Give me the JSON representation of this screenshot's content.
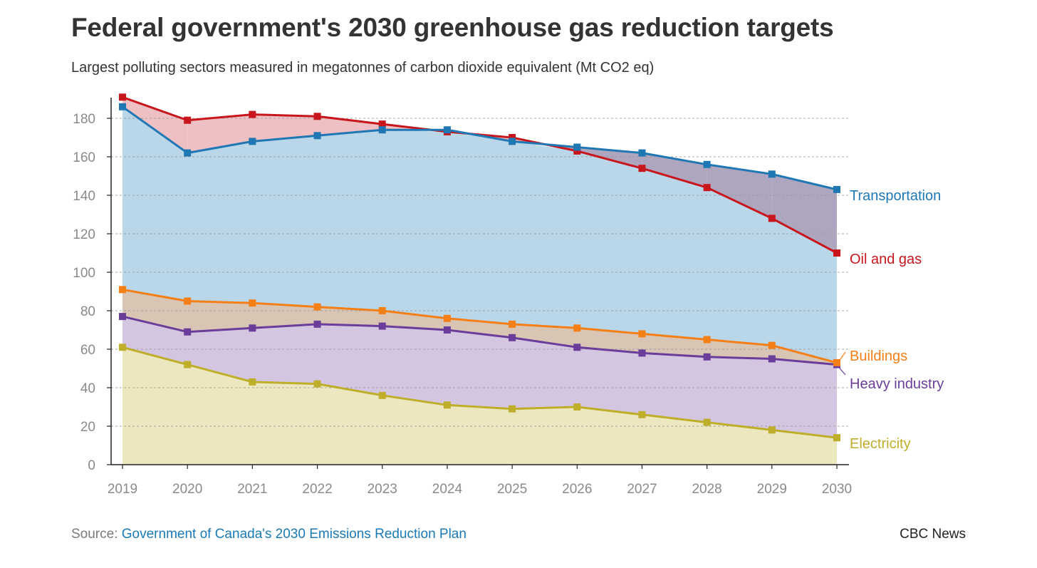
{
  "header": {
    "title": "Federal government's 2030 greenhouse gas reduction targets",
    "subtitle": "Largest polluting sectors measured in megatonnes of carbon dioxide equivalent (Mt CO2 eq)"
  },
  "footer": {
    "source_prefix": "Source: ",
    "source_link": "Government of Canada's 2030 Emissions Reduction Plan",
    "credit": "CBC News"
  },
  "chart_data": {
    "type": "area",
    "title": "Federal government's 2030 greenhouse gas reduction targets",
    "subtitle": "Largest polluting sectors measured in megatonnes of carbon dioxide equivalent (Mt CO2 eq)",
    "xlabel": "",
    "ylabel": "",
    "x": [
      2019,
      2020,
      2021,
      2022,
      2023,
      2024,
      2025,
      2026,
      2027,
      2028,
      2029,
      2030
    ],
    "ylim": [
      0,
      190
    ],
    "yticks": [
      0,
      20,
      40,
      60,
      80,
      100,
      120,
      140,
      160,
      180
    ],
    "grid": true,
    "legend": "direct labels at right end of lines",
    "series": [
      {
        "name": "Transportation",
        "color": "#1f77b4",
        "fill": "#bad6e9",
        "values": [
          186,
          162,
          168,
          171,
          174,
          174,
          168,
          165,
          162,
          156,
          151,
          143
        ]
      },
      {
        "name": "Oil and gas",
        "color": "#c8161d",
        "fill": "#eebfc3",
        "values": [
          191,
          179,
          182,
          181,
          177,
          173,
          170,
          163,
          154,
          144,
          128,
          110
        ]
      },
      {
        "name": "Buildings",
        "color": "#f57f17",
        "fill": "#d9c5b3",
        "values": [
          91,
          85,
          84,
          82,
          80,
          76,
          73,
          71,
          68,
          65,
          62,
          53
        ]
      },
      {
        "name": "Heavy industry",
        "color": "#6a3d9a",
        "fill": "#d4c6e1",
        "values": [
          77,
          69,
          71,
          73,
          72,
          70,
          66,
          61,
          58,
          56,
          55,
          52
        ]
      },
      {
        "name": "Electricity",
        "color": "#bfae2a",
        "fill": "#ece7bf",
        "values": [
          61,
          52,
          43,
          42,
          36,
          31,
          29,
          30,
          26,
          22,
          18,
          14
        ]
      }
    ],
    "overlap_fill": "#aea5bf"
  }
}
